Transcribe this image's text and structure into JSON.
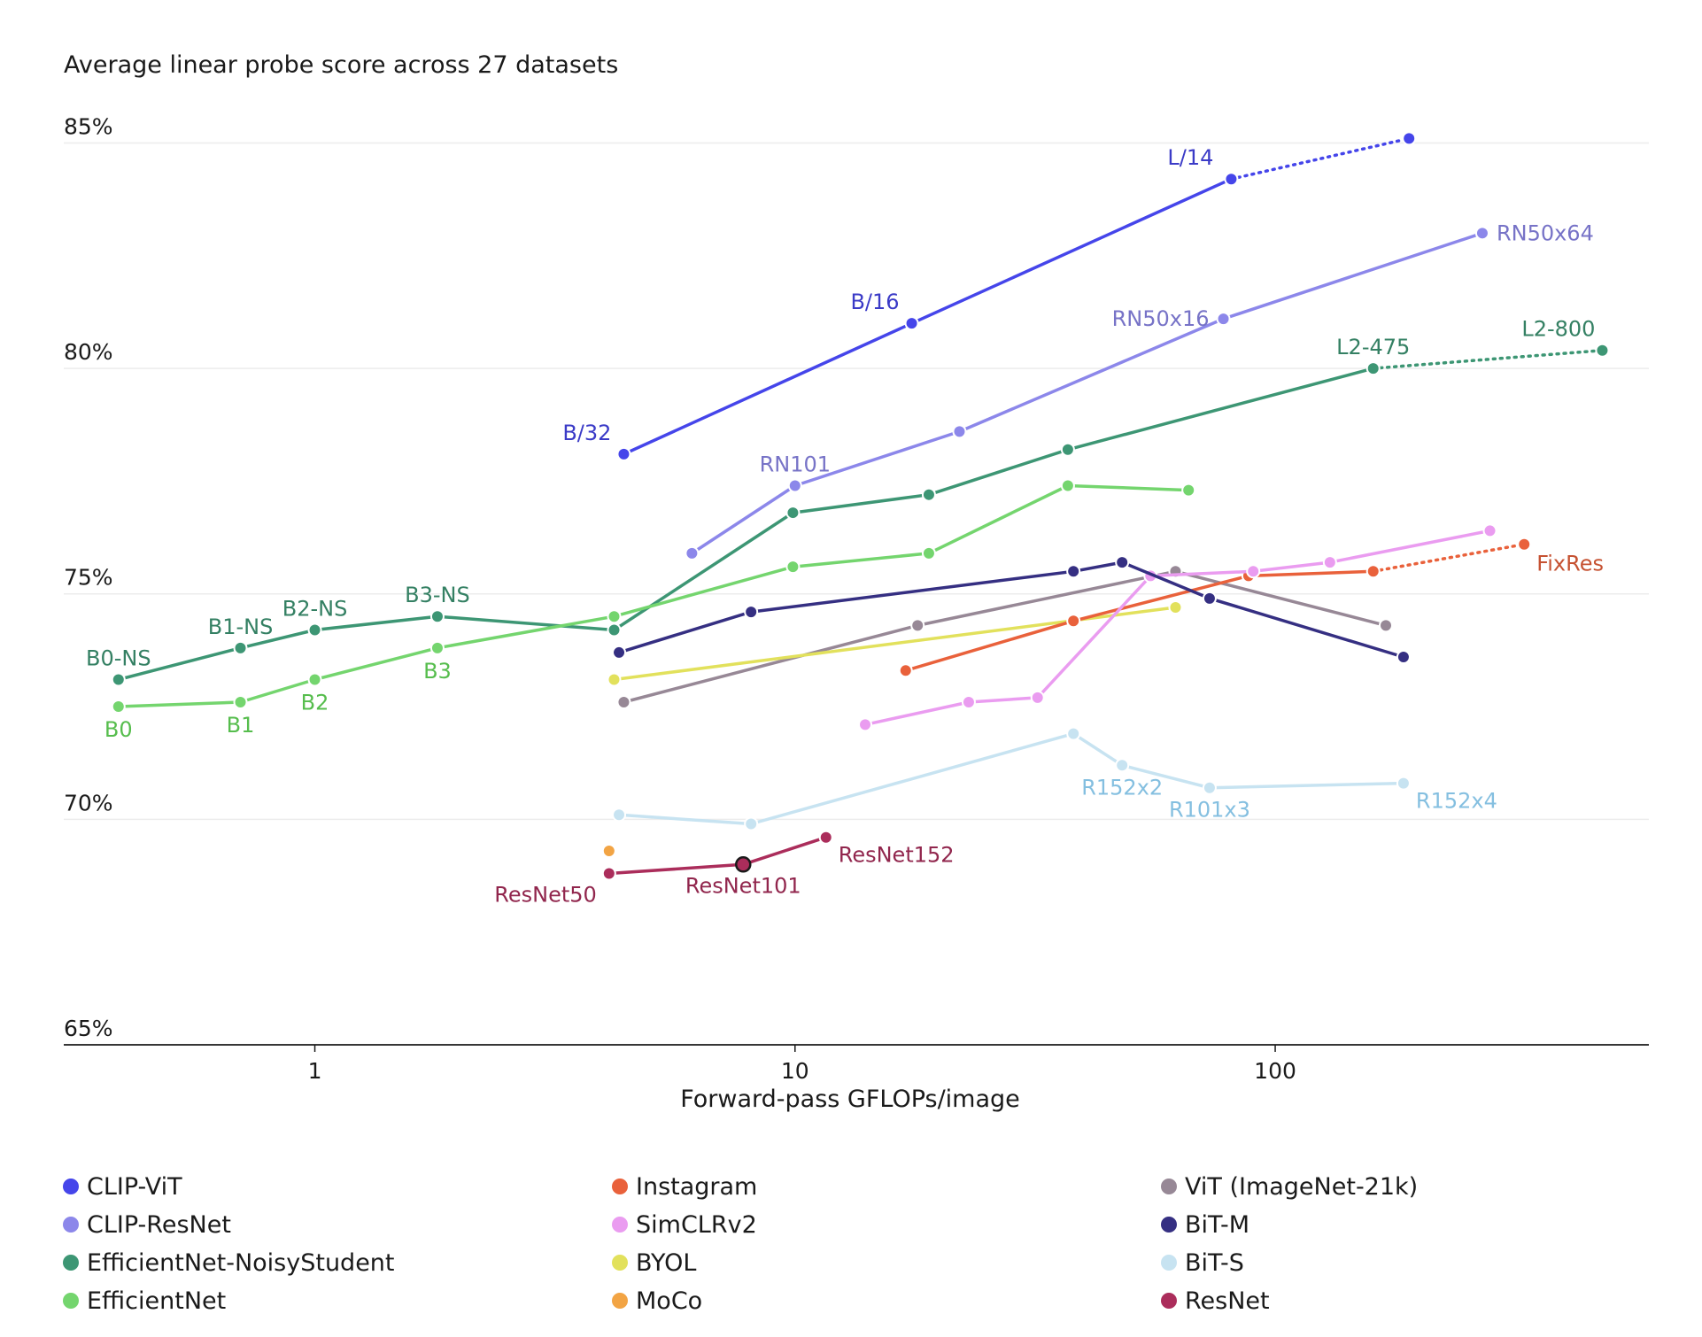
{
  "chart_data": {
    "type": "line",
    "title": "Average linear probe score across 27 datasets",
    "xlabel": "Forward-pass GFLOPs/image",
    "ylabel": "",
    "x_scale": "log",
    "xlim": [
      0.3,
      600
    ],
    "ylim": [
      65,
      85.5
    ],
    "x_ticks": [
      1,
      10,
      100
    ],
    "x_tick_labels": [
      "1",
      "10",
      "100"
    ],
    "y_ticks": [
      65,
      70,
      75,
      80,
      85
    ],
    "y_tick_labels": [
      "65%",
      "70%",
      "75%",
      "80%",
      "85%"
    ],
    "series": [
      {
        "name": "EfficientNet-NoisyStudent",
        "color": "#3d9674",
        "x": [
          0.39,
          0.7,
          1.0,
          1.8,
          4.2,
          9.9,
          19,
          37,
          160
        ],
        "y": [
          73.1,
          73.8,
          74.2,
          74.5,
          74.2,
          76.8,
          77.2,
          78.2,
          80.0
        ],
        "labels": [
          "B0-NS",
          "B1-NS",
          "B2-NS",
          "B3-NS",
          "",
          "",
          "",
          "",
          "L2-475"
        ],
        "extension": {
          "x": [
            160,
            480
          ],
          "y": [
            80.0,
            80.4
          ],
          "label": "L2-800"
        }
      },
      {
        "name": "EfficientNet",
        "color": "#74d56e",
        "x": [
          0.39,
          0.7,
          1.0,
          1.8,
          4.2,
          9.9,
          19,
          37,
          66
        ],
        "y": [
          72.5,
          72.6,
          73.1,
          73.8,
          74.5,
          75.6,
          75.9,
          77.4,
          77.3
        ],
        "labels": [
          "B0",
          "B1",
          "B2",
          "B3",
          "",
          "",
          "",
          "",
          ""
        ]
      },
      {
        "name": "ViT (ImageNet-21k)",
        "color": "#978896",
        "x": [
          4.4,
          18,
          62,
          170
        ],
        "y": [
          72.6,
          74.3,
          75.5,
          74.3
        ],
        "labels": [
          "",
          "",
          "",
          ""
        ]
      },
      {
        "name": "BYOL",
        "color": "#e2e15c",
        "x": [
          4.2,
          62
        ],
        "y": [
          73.1,
          74.7
        ],
        "labels": [
          "",
          ""
        ]
      },
      {
        "name": "Instagram",
        "color": "#e9613b",
        "x": [
          17,
          38,
          88,
          160
        ],
        "y": [
          73.3,
          74.4,
          75.4,
          75.5
        ],
        "labels": [
          "",
          "",
          "",
          ""
        ],
        "extension": {
          "x": [
            160,
            330
          ],
          "y": [
            75.5,
            76.1
          ],
          "label": "FixRes"
        }
      },
      {
        "name": "SimCLRv2",
        "color": "#ea9cf0",
        "x": [
          14,
          23,
          32,
          55,
          90,
          130,
          280
        ],
        "y": [
          72.1,
          72.6,
          72.7,
          75.4,
          75.5,
          75.7,
          76.4
        ],
        "labels": [
          "",
          "",
          "",
          "",
          "",
          "",
          ""
        ]
      },
      {
        "name": "BiT-M",
        "color": "#352f82",
        "x": [
          4.3,
          8.1,
          38,
          48,
          73,
          185
        ],
        "y": [
          73.7,
          74.6,
          75.5,
          75.7,
          74.9,
          73.6
        ],
        "labels": [
          "",
          "",
          "",
          "",
          "",
          ""
        ]
      },
      {
        "name": "BiT-S",
        "color": "#c7e3f1",
        "x": [
          4.3,
          8.1,
          38,
          48,
          73,
          185
        ],
        "y": [
          70.1,
          69.9,
          71.9,
          71.2,
          70.7,
          70.8
        ],
        "labels": [
          "",
          "",
          "",
          "R152x2",
          "R101x3",
          "R152x4"
        ]
      },
      {
        "name": "CLIP-ResNet",
        "color": "#8c87ea",
        "x": [
          6.1,
          10,
          22,
          78,
          270
        ],
        "y": [
          75.9,
          77.4,
          78.6,
          81.1,
          83.0
        ],
        "labels": [
          "",
          "RN101",
          "",
          "RN50x16",
          "RN50x64"
        ]
      },
      {
        "name": "CLIP-ViT",
        "color": "#4545ea",
        "x": [
          4.4,
          17.5,
          81
        ],
        "y": [
          78.1,
          81.0,
          84.2
        ],
        "labels": [
          "B/32",
          "B/16",
          "L/14"
        ],
        "extension": {
          "x": [
            81,
            190
          ],
          "y": [
            84.2,
            85.1
          ],
          "label": ""
        }
      },
      {
        "name": "MoCo",
        "color": "#f2a444",
        "x": [
          4.1
        ],
        "y": [
          69.3
        ],
        "labels": [
          ""
        ]
      },
      {
        "name": "ResNet",
        "color": "#ab2d5b",
        "x": [
          4.1,
          7.8,
          11.6
        ],
        "y": [
          68.8,
          69.0,
          69.6
        ],
        "labels": [
          "ResNet50",
          "ResNet101",
          "ResNet152"
        ],
        "highlight_index": 1
      }
    ],
    "legend": [
      [
        "CLIP-ViT",
        "CLIP-ResNet",
        "EfficientNet-NoisyStudent",
        "EfficientNet"
      ],
      [
        "Instagram",
        "SimCLRv2",
        "BYOL",
        "MoCo"
      ],
      [
        "ViT (ImageNet-21k)",
        "BiT-M",
        "BiT-S",
        "ResNet"
      ]
    ]
  }
}
